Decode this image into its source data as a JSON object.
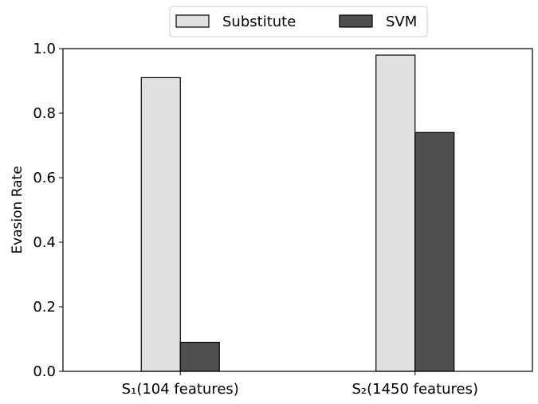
{
  "chart_data": {
    "type": "bar",
    "categories": [
      "S₁(104 features)",
      "S₂(1450 features)"
    ],
    "series": [
      {
        "name": "Substitute",
        "values": [
          0.91,
          0.98
        ],
        "color": "#e0e0e0"
      },
      {
        "name": "SVM",
        "values": [
          0.09,
          0.74
        ],
        "color": "#4f4f4f"
      }
    ],
    "ylabel": "Evasion Rate",
    "xlabel": "",
    "ylim": [
      0,
      1.0
    ],
    "yticks": [
      "0.0",
      "0.2",
      "0.4",
      "0.6",
      "0.8",
      "1.0"
    ],
    "grid": false,
    "legend_position": "top-center"
  }
}
